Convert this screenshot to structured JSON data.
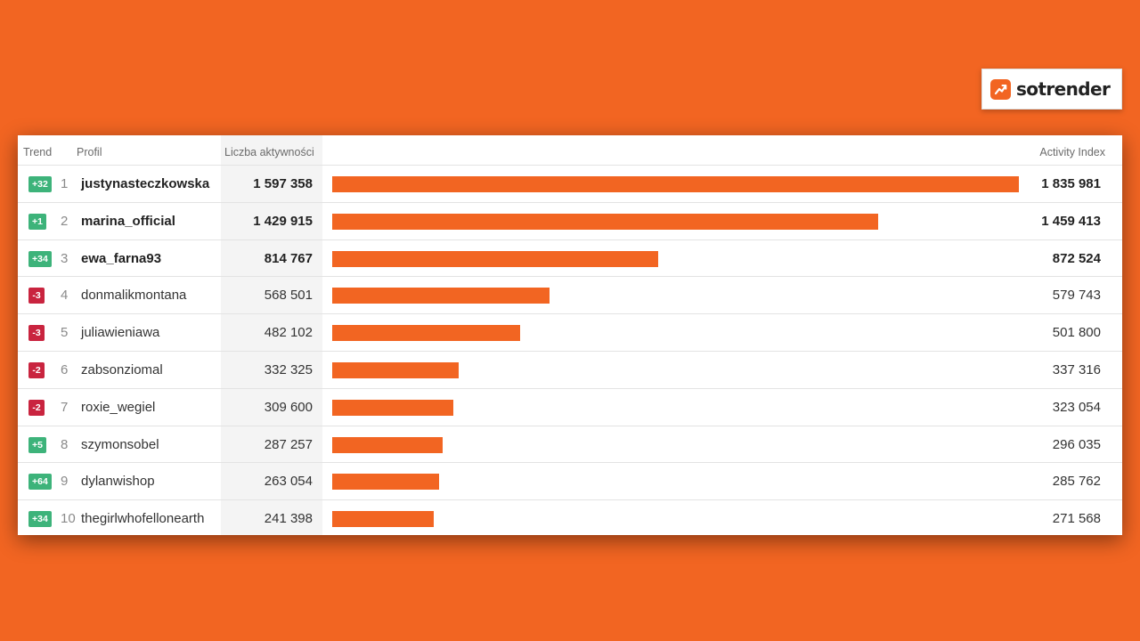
{
  "brand": {
    "name": "sotrender",
    "icon": "trend-up-icon",
    "color": "#f26522"
  },
  "chart_data": {
    "type": "bar",
    "orientation": "horizontal",
    "columns": {
      "trend": "Trend",
      "profile": "Profil",
      "activities": "Liczba aktywności",
      "index": "Activity Index"
    },
    "bar_max": 1835981,
    "rows": [
      {
        "trend": "+32",
        "direction": "up",
        "rank": "1",
        "profile": "justynasteczkowska",
        "activities": "1 597 358",
        "index_label": "1 835 981",
        "index": 1835981
      },
      {
        "trend": "+1",
        "direction": "up",
        "rank": "2",
        "profile": "marina_official",
        "activities": "1 429 915",
        "index_label": "1 459 413",
        "index": 1459413
      },
      {
        "trend": "+34",
        "direction": "up",
        "rank": "3",
        "profile": "ewa_farna93",
        "activities": "814 767",
        "index_label": "872 524",
        "index": 872524
      },
      {
        "trend": "-3",
        "direction": "down",
        "rank": "4",
        "profile": "donmalikmontana",
        "activities": "568 501",
        "index_label": "579 743",
        "index": 579743
      },
      {
        "trend": "-3",
        "direction": "down",
        "rank": "5",
        "profile": "juliawieniawa",
        "activities": "482 102",
        "index_label": "501 800",
        "index": 501800
      },
      {
        "trend": "-2",
        "direction": "down",
        "rank": "6",
        "profile": "zabsonziomal",
        "activities": "332 325",
        "index_label": "337 316",
        "index": 337316
      },
      {
        "trend": "-2",
        "direction": "down",
        "rank": "7",
        "profile": "roxie_wegiel",
        "activities": "309 600",
        "index_label": "323 054",
        "index": 323054
      },
      {
        "trend": "+5",
        "direction": "up",
        "rank": "8",
        "profile": "szymonsobel",
        "activities": "287 257",
        "index_label": "296 035",
        "index": 296035
      },
      {
        "trend": "+64",
        "direction": "up",
        "rank": "9",
        "profile": "dylanwishop",
        "activities": "263 054",
        "index_label": "285 762",
        "index": 285762
      },
      {
        "trend": "+34",
        "direction": "up",
        "rank": "10",
        "profile": "thegirlwhofellonearth",
        "activities": "241 398",
        "index_label": "271 568",
        "index": 271568
      }
    ],
    "colors": {
      "bar": "#f26522",
      "trend_up": "#3db37a",
      "trend_down": "#c9243f"
    }
  }
}
